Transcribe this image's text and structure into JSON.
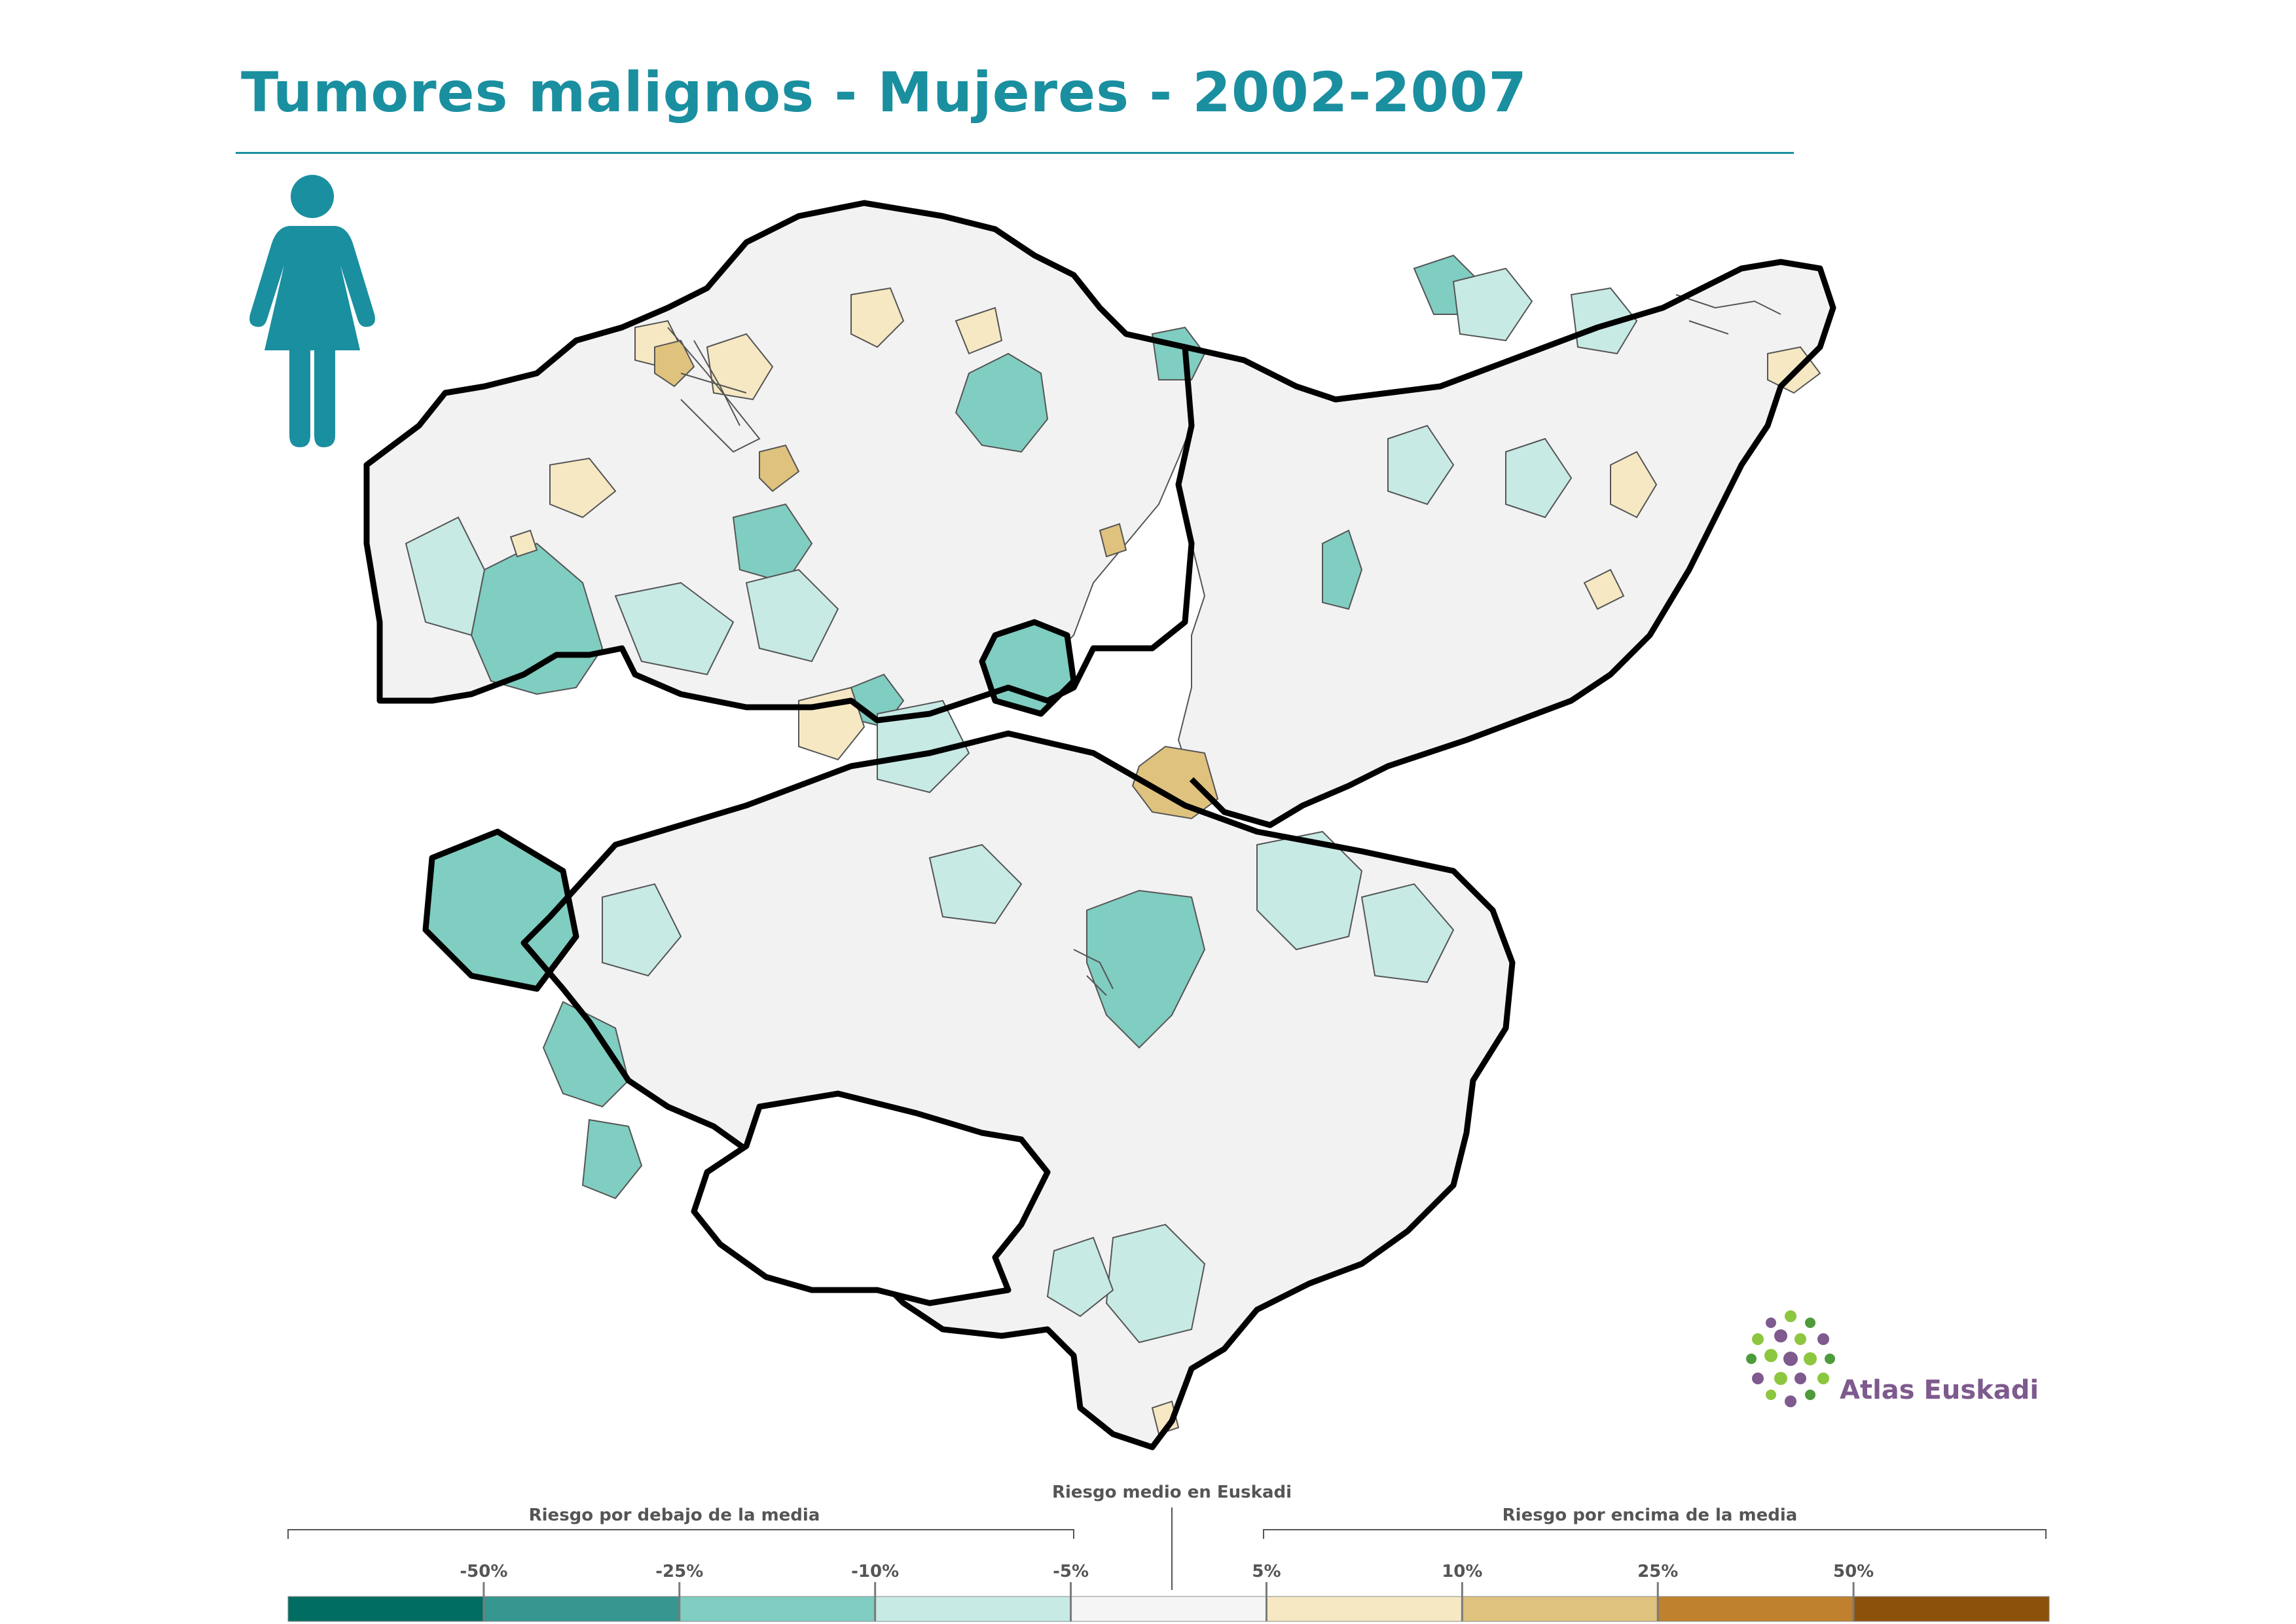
{
  "header": {
    "title": "Tumores malignos - Mujeres - 2002-2007"
  },
  "icons": {
    "person": "woman-icon",
    "logo": "atlas-euskadi-logo"
  },
  "logo": {
    "label": "Atlas Euskadi",
    "text_color": "#7e5a8e",
    "dot_colors": [
      "#8dc63f",
      "#7e5a8e",
      "#4f9a3a"
    ]
  },
  "map": {
    "region": "Euskadi",
    "colors": {
      "boundary_thick": "#000000",
      "boundary_thin": "#555555",
      "no_data": "#f2f2f2"
    }
  },
  "legend": {
    "below_label": "Riesgo por debajo de la media",
    "mean_label": "Riesgo medio en Euskadi",
    "above_label": "Riesgo por encima de la media",
    "ticks": [
      "-50%",
      "-25%",
      "-10%",
      "-5%",
      "5%",
      "10%",
      "25%",
      "50%"
    ],
    "classes": [
      {
        "range": "< -50%",
        "color": "#006d62"
      },
      {
        "range": "-50% a -25%",
        "color": "#35978f"
      },
      {
        "range": "-25% a -10%",
        "color": "#80cdc1"
      },
      {
        "range": "-10% a -5%",
        "color": "#c7eae5"
      },
      {
        "range": "-5% a 5%",
        "color": "#f5f5f5"
      },
      {
        "range": "5% a 10%",
        "color": "#f6e8c3"
      },
      {
        "range": "10% a 25%",
        "color": "#dfc27d"
      },
      {
        "range": "25% a 50%",
        "color": "#bf812d"
      },
      {
        "range": "> 50%",
        "color": "#8c510a"
      }
    ]
  },
  "colors": {
    "title": "#1a8fa0",
    "icon": "#1a8fa0"
  }
}
